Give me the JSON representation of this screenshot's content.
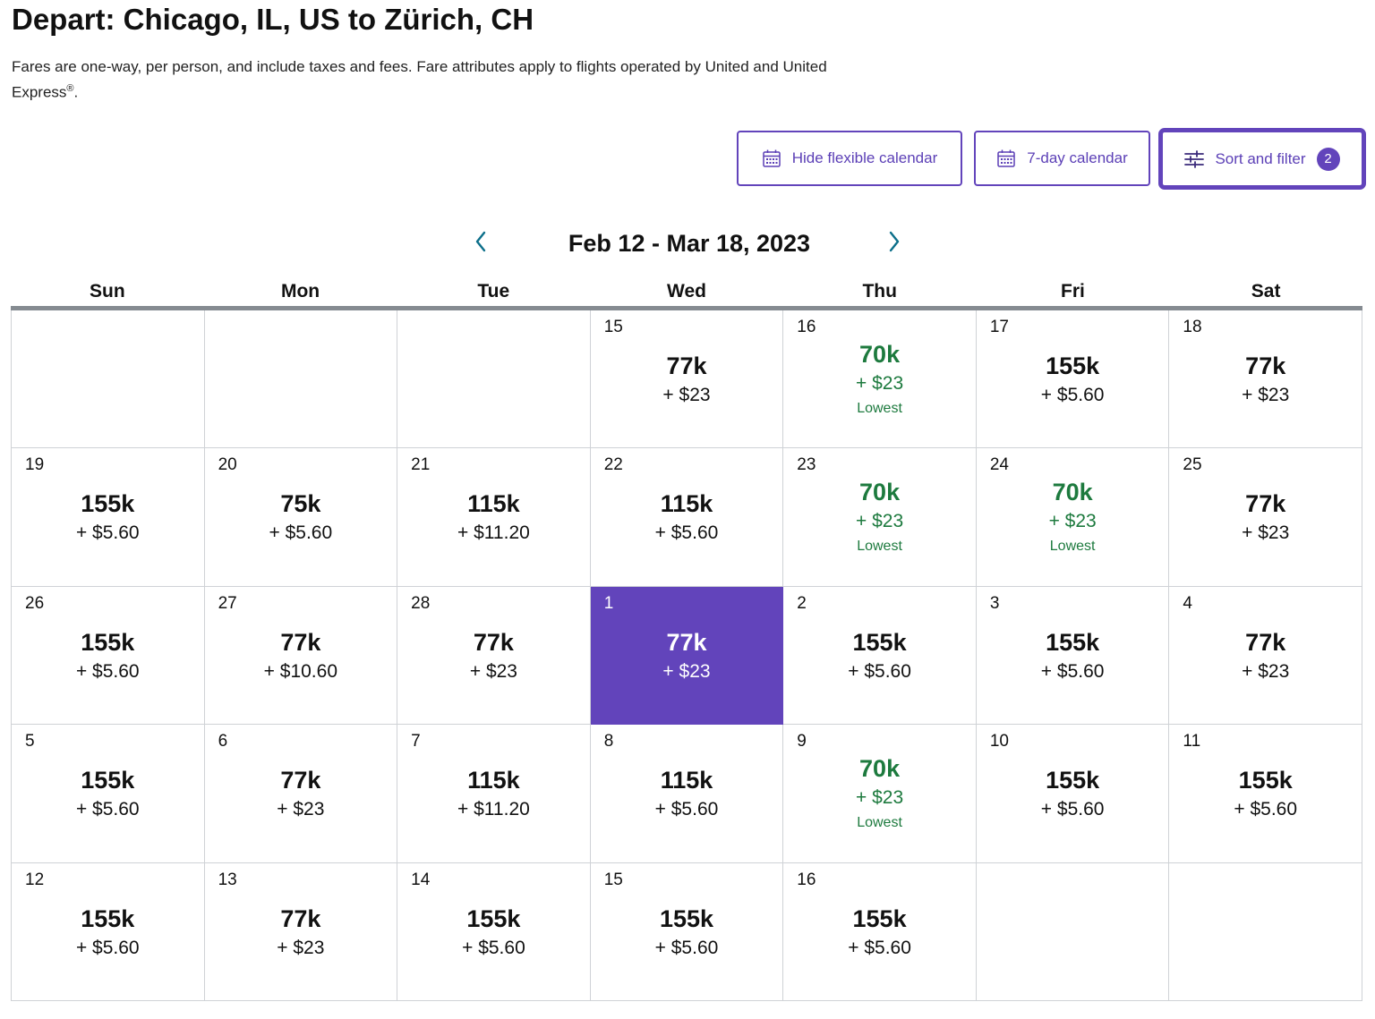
{
  "header": {
    "title": "Depart: Chicago, IL, US to Zürich, CH",
    "subtitle": "Fares are one-way, per person, and include taxes and fees. Fare attributes apply to flights operated by United and United Express",
    "subtitle_mark": "®",
    "subtitle_end": "."
  },
  "toolbar": {
    "hide_calendar_label": "Hide flexible calendar",
    "seven_day_label": "7-day calendar",
    "sort_filter_label": "Sort and filter",
    "sort_filter_count": "2",
    "calendar_icon": "calendar-icon",
    "filter_icon": "sliders-icon"
  },
  "calendar": {
    "range": "Feb 12 - Mar 18, 2023",
    "prev_icon": "chevron-left-icon",
    "next_icon": "chevron-right-icon",
    "weekdays": [
      "Sun",
      "Mon",
      "Tue",
      "Wed",
      "Thu",
      "Fri",
      "Sat"
    ],
    "lowest_label": "Lowest",
    "colors": {
      "accent": "#6244bb",
      "lowest": "#1d7a3e",
      "grid": "#cfd2d6",
      "header_rule": "#858b91"
    },
    "selected": "1",
    "days": [
      null,
      null,
      null,
      {
        "day": "15",
        "miles": "77k",
        "tax": "+ $23"
      },
      {
        "day": "16",
        "miles": "70k",
        "tax": "+ $23",
        "lowest": true
      },
      {
        "day": "17",
        "miles": "155k",
        "tax": "+ $5.60"
      },
      {
        "day": "18",
        "miles": "77k",
        "tax": "+ $23"
      },
      {
        "day": "19",
        "miles": "155k",
        "tax": "+ $5.60"
      },
      {
        "day": "20",
        "miles": "75k",
        "tax": "+ $5.60"
      },
      {
        "day": "21",
        "miles": "115k",
        "tax": "+ $11.20"
      },
      {
        "day": "22",
        "miles": "115k",
        "tax": "+ $5.60"
      },
      {
        "day": "23",
        "miles": "70k",
        "tax": "+ $23",
        "lowest": true
      },
      {
        "day": "24",
        "miles": "70k",
        "tax": "+ $23",
        "lowest": true
      },
      {
        "day": "25",
        "miles": "77k",
        "tax": "+ $23"
      },
      {
        "day": "26",
        "miles": "155k",
        "tax": "+ $5.60"
      },
      {
        "day": "27",
        "miles": "77k",
        "tax": "+ $10.60"
      },
      {
        "day": "28",
        "miles": "77k",
        "tax": "+ $23"
      },
      {
        "day": "1",
        "miles": "77k",
        "tax": "+ $23",
        "selected": true
      },
      {
        "day": "2",
        "miles": "155k",
        "tax": "+ $5.60"
      },
      {
        "day": "3",
        "miles": "155k",
        "tax": "+ $5.60"
      },
      {
        "day": "4",
        "miles": "77k",
        "tax": "+ $23"
      },
      {
        "day": "5",
        "miles": "155k",
        "tax": "+ $5.60"
      },
      {
        "day": "6",
        "miles": "77k",
        "tax": "+ $23"
      },
      {
        "day": "7",
        "miles": "115k",
        "tax": "+ $11.20"
      },
      {
        "day": "8",
        "miles": "115k",
        "tax": "+ $5.60"
      },
      {
        "day": "9",
        "miles": "70k",
        "tax": "+ $23",
        "lowest": true
      },
      {
        "day": "10",
        "miles": "155k",
        "tax": "+ $5.60"
      },
      {
        "day": "11",
        "miles": "155k",
        "tax": "+ $5.60"
      },
      {
        "day": "12",
        "miles": "155k",
        "tax": "+ $5.60"
      },
      {
        "day": "13",
        "miles": "77k",
        "tax": "+ $23"
      },
      {
        "day": "14",
        "miles": "155k",
        "tax": "+ $5.60"
      },
      {
        "day": "15",
        "miles": "155k",
        "tax": "+ $5.60"
      },
      {
        "day": "16",
        "miles": "155k",
        "tax": "+ $5.60"
      },
      null,
      null
    ]
  }
}
